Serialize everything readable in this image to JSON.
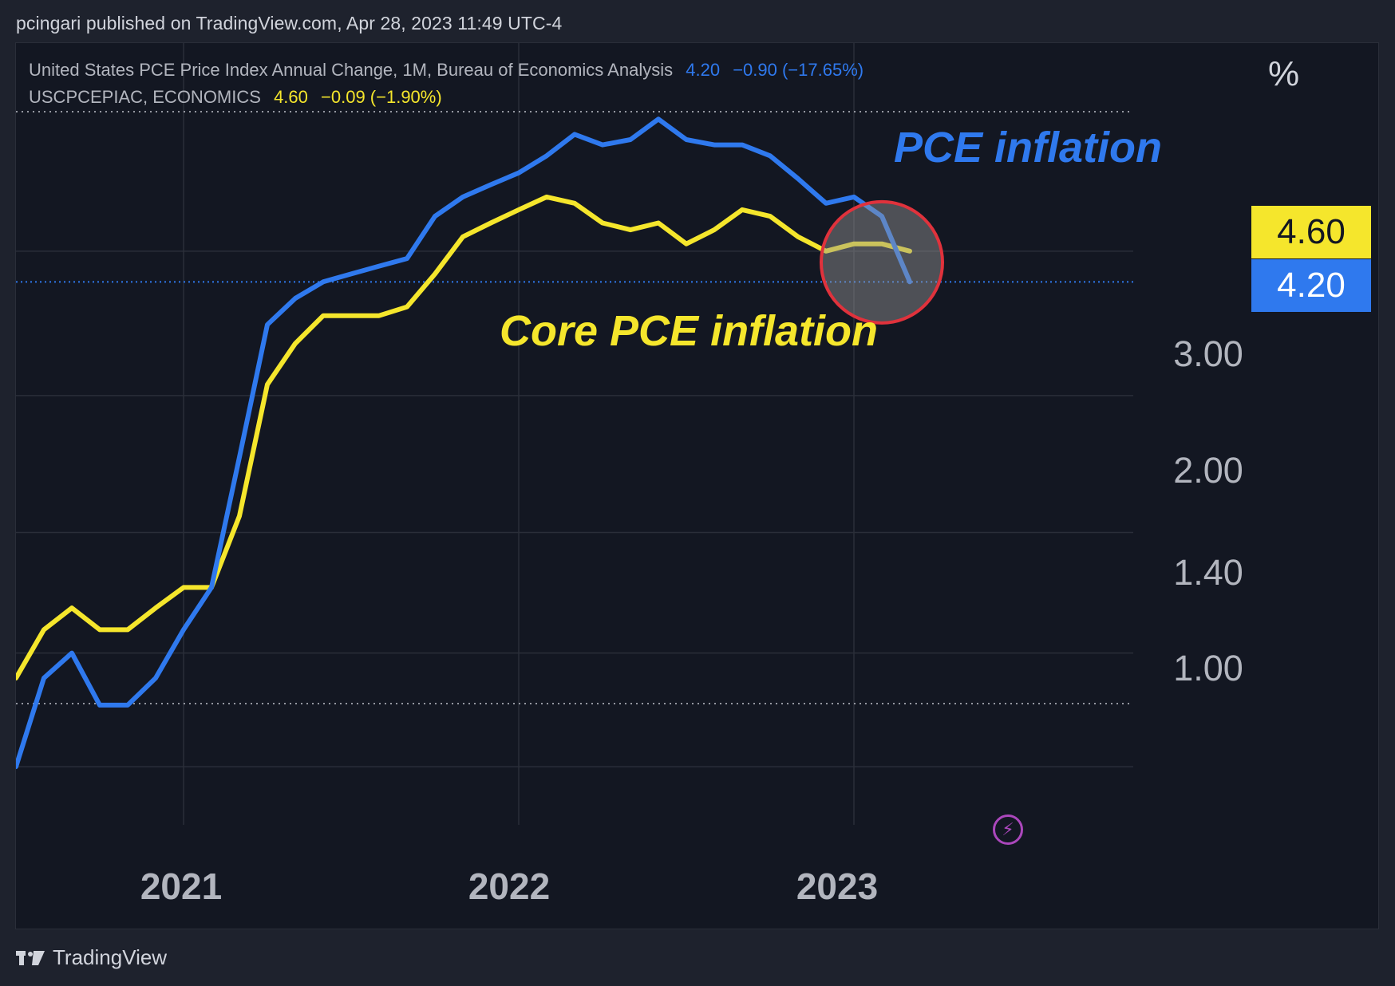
{
  "header": {
    "publish_line": "pcingari published on TradingView.com, Apr 28, 2023 11:49 UTC-4"
  },
  "legend": {
    "series1_name": "United States PCE Price Index Annual Change, 1M, Bureau of Economics Analysis",
    "series1_last": "4.20",
    "series1_change": "−0.90 (−17.65%)",
    "series2_name": "USCPCEPIAC, ECONOMICS",
    "series2_last": "4.60",
    "series2_change": "−0.09 (−1.90%)"
  },
  "axis": {
    "unit": "%",
    "y_ticks": [
      "3.00",
      "2.00",
      "1.40",
      "1.00"
    ],
    "x_ticks": [
      "2021",
      "2022",
      "2023"
    ]
  },
  "badges": {
    "core": "4.60",
    "pce": "4.20"
  },
  "annotations": {
    "pce_label": "PCE inflation",
    "core_label": "Core PCE inflation"
  },
  "footer": {
    "brand": "TradingView"
  },
  "colors": {
    "pce": "#2f79ee",
    "core": "#f5e62c",
    "highlight_circle": "#e0323c",
    "background": "#131722"
  },
  "chart_data": {
    "type": "line",
    "scale": "log",
    "x": [
      "2020-07",
      "2020-08",
      "2020-09",
      "2020-10",
      "2020-11",
      "2020-12",
      "2021-01",
      "2021-02",
      "2021-03",
      "2021-04",
      "2021-05",
      "2021-06",
      "2021-07",
      "2021-08",
      "2021-09",
      "2021-10",
      "2021-11",
      "2021-12",
      "2022-01",
      "2022-02",
      "2022-03",
      "2022-04",
      "2022-05",
      "2022-06",
      "2022-07",
      "2022-08",
      "2022-09",
      "2022-10",
      "2022-11",
      "2022-12",
      "2023-01",
      "2023-02",
      "2023-03"
    ],
    "series": [
      {
        "name": "United States PCE Price Index Annual Change",
        "values": [
          1.0,
          1.3,
          1.4,
          1.2,
          1.2,
          1.3,
          1.5,
          1.7,
          2.5,
          3.7,
          4.0,
          4.2,
          4.3,
          4.4,
          4.5,
          5.1,
          5.4,
          5.6,
          5.8,
          6.1,
          6.5,
          6.3,
          6.4,
          6.8,
          6.4,
          6.3,
          6.3,
          6.1,
          5.7,
          5.3,
          5.4,
          5.1,
          4.2
        ]
      },
      {
        "name": "USCPCEPIAC",
        "values": [
          1.3,
          1.5,
          1.6,
          1.5,
          1.5,
          1.6,
          1.7,
          1.7,
          2.1,
          3.1,
          3.5,
          3.8,
          3.8,
          3.8,
          3.9,
          4.3,
          4.8,
          5.0,
          5.2,
          5.4,
          5.3,
          5.0,
          4.9,
          5.0,
          4.7,
          4.9,
          5.2,
          5.1,
          4.8,
          4.6,
          4.7,
          4.7,
          4.6
        ]
      }
    ],
    "y_ticks": [
      1.0,
      1.4,
      2.0,
      3.0,
      4.2,
      4.6
    ],
    "ylim": [
      0.97,
      7.05
    ],
    "xlim": [
      "2020-07",
      "2023-11"
    ],
    "grid": true,
    "highlight": {
      "x": "2023-02",
      "y": 4.45
    }
  }
}
